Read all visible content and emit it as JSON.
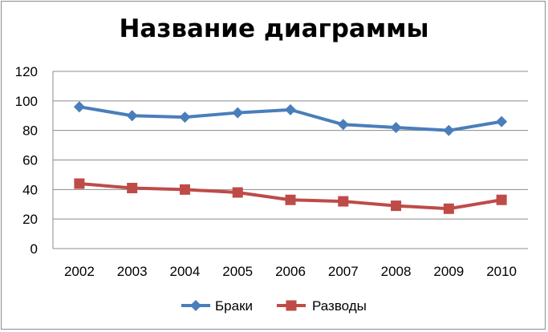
{
  "chart_data": {
    "type": "line",
    "title": "Название диаграммы",
    "xlabel": "",
    "ylabel": "",
    "categories": [
      "2002",
      "2003",
      "2004",
      "2005",
      "2006",
      "2007",
      "2008",
      "2009",
      "2010"
    ],
    "ylim": [
      0,
      120
    ],
    "yticks": [
      "0",
      "20",
      "40",
      "60",
      "80",
      "100",
      "120"
    ],
    "grid": true,
    "legend_position": "bottom",
    "series": [
      {
        "name": "Браки",
        "values": [
          96,
          90,
          89,
          92,
          94,
          84,
          82,
          80,
          86
        ],
        "color": "#4a7ebb",
        "marker": "diamond"
      },
      {
        "name": "Разводы",
        "values": [
          44,
          41,
          40,
          38,
          33,
          32,
          29,
          27,
          33
        ],
        "color": "#be4b48",
        "marker": "square"
      }
    ]
  }
}
